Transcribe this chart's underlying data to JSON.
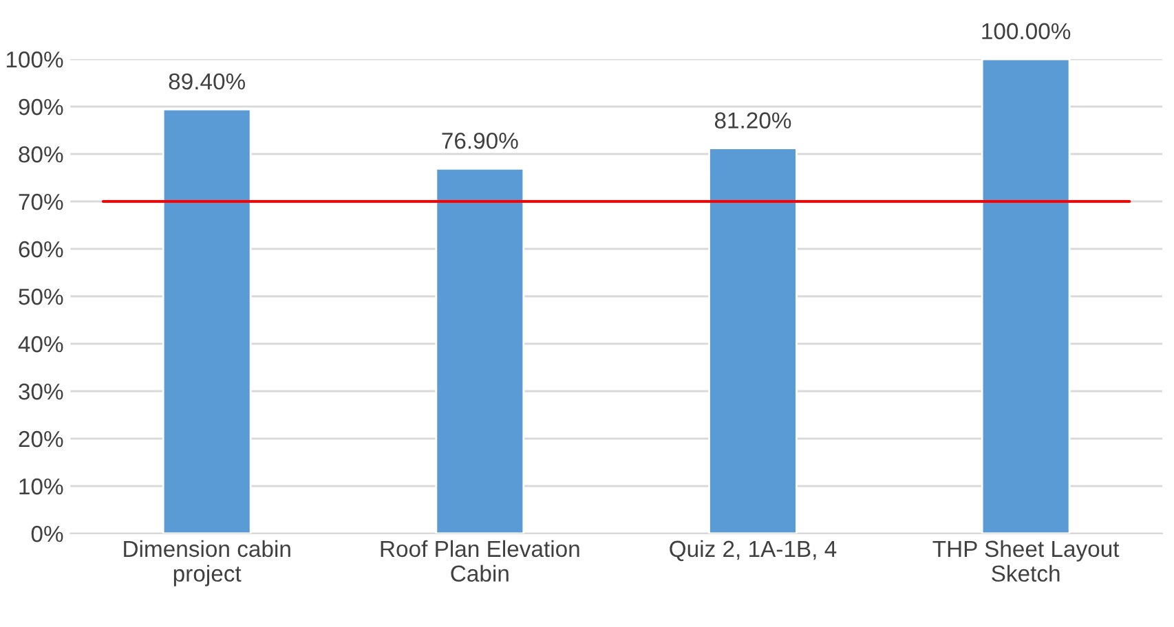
{
  "chart_data": {
    "type": "bar",
    "categories": [
      "Dimension cabin\nproject",
      "Roof Plan Elevation\nCabin",
      "Quiz 2, 1A-1B, 4",
      "THP Sheet Layout\nSketch"
    ],
    "values": [
      89.4,
      76.9,
      81.2,
      100
    ],
    "value_labels": [
      "89.40%",
      "76.90%",
      "81.20%",
      "100.00%"
    ],
    "color": "#5b9bd5",
    "ylim": [
      0,
      100
    ],
    "yticks": [
      {
        "value": 0,
        "label": "0%"
      },
      {
        "value": 10,
        "label": "10%"
      },
      {
        "value": 20,
        "label": "20%"
      },
      {
        "value": 30,
        "label": "30%"
      },
      {
        "value": 40,
        "label": "40%"
      },
      {
        "value": 50,
        "label": "50%"
      },
      {
        "value": 60,
        "label": "60%"
      },
      {
        "value": 70,
        "label": "70%"
      },
      {
        "value": 80,
        "label": "80%"
      },
      {
        "value": 90,
        "label": "90%"
      },
      {
        "value": 100,
        "label": "100%"
      }
    ],
    "ref_lines": [
      {
        "axis": "y",
        "value": 70,
        "color": "#ff0000"
      }
    ],
    "grid": "y",
    "legend": false
  }
}
